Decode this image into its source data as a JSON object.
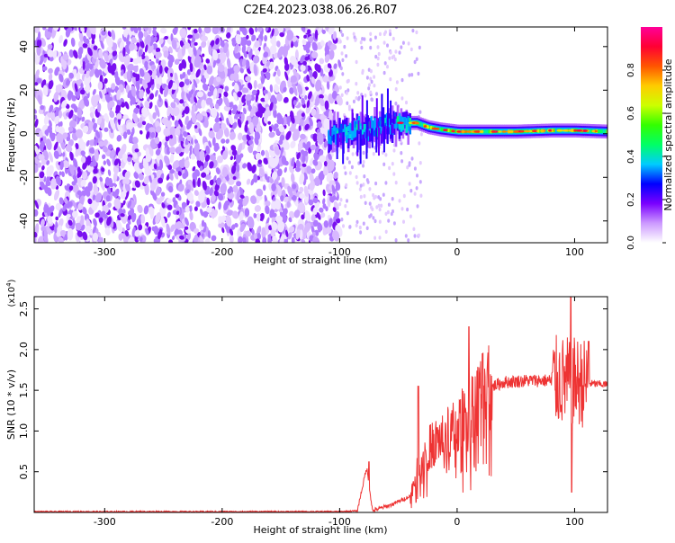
{
  "title": "C2E4.2023.038.06.26.R07",
  "chart_data": [
    {
      "type": "heatmap",
      "xlabel": "Height of straight line (km)",
      "ylabel": "Frequency (Hz)",
      "xlim": [
        -360,
        128
      ],
      "ylim": [
        -50,
        49
      ],
      "x_ticks": [
        -300,
        -200,
        -100,
        0,
        100
      ],
      "y_ticks": [
        -40,
        -20,
        0,
        20,
        40
      ],
      "noise_region_x": [
        -360,
        -100
      ],
      "transition_region_x": [
        -110,
        -40
      ],
      "signal_track": [
        {
          "x": -110,
          "y": -1
        },
        {
          "x": -95,
          "y": 1
        },
        {
          "x": -80,
          "y": 2
        },
        {
          "x": -65,
          "y": 3
        },
        {
          "x": -50,
          "y": 5
        },
        {
          "x": -35,
          "y": 5
        },
        {
          "x": -25,
          "y": 3
        },
        {
          "x": -15,
          "y": 2
        },
        {
          "x": 0,
          "y": 1
        },
        {
          "x": 20,
          "y": 1
        },
        {
          "x": 50,
          "y": 1
        },
        {
          "x": 80,
          "y": 1.5
        },
        {
          "x": 100,
          "y": 1.5
        },
        {
          "x": 128,
          "y": 1
        }
      ],
      "colorbar": {
        "label": "Normalized spectral amplitude",
        "range": [
          0.0,
          1.0
        ],
        "ticks": [
          0.0,
          0.2,
          0.4,
          0.6,
          0.8
        ],
        "stops": [
          "#ffffff",
          "#cc99ff",
          "#7a00ff",
          "#0000ff",
          "#00ccff",
          "#00ff66",
          "#33ff00",
          "#ccff00",
          "#ffcc00",
          "#ff5500",
          "#ff0033",
          "#ff0099"
        ]
      }
    },
    {
      "type": "line",
      "xlabel": "Height of straight line (km)",
      "ylabel": "SNR (10 * v/v)",
      "y_multiplier_label": "(x10",
      "y_multiplier_exp": "4",
      "xlim": [
        -360,
        128
      ],
      "ylim": [
        0,
        2.65
      ],
      "x_ticks": [
        -300,
        -200,
        -100,
        0,
        100
      ],
      "y_ticks": [
        0.5,
        1.0,
        1.5,
        2.0,
        2.5
      ],
      "y_tick_labels": [
        "0.5",
        "1.0",
        "1.5",
        "2.0",
        "2.5"
      ],
      "color": "#ee3333",
      "series_envelope": [
        {
          "x": -360,
          "y": 0.01
        },
        {
          "x": -100,
          "y": 0.01
        },
        {
          "x": -85,
          "y": 0.02
        },
        {
          "x": -77,
          "y": 0.55
        },
        {
          "x": -72,
          "y": 0.02
        },
        {
          "x": -55,
          "y": 0.1
        },
        {
          "x": -40,
          "y": 0.2
        },
        {
          "x": -30,
          "y": 0.7
        },
        {
          "x": -20,
          "y": 0.85
        },
        {
          "x": -10,
          "y": 0.95
        },
        {
          "x": 0,
          "y": 1.05
        },
        {
          "x": 10,
          "y": 1.25
        },
        {
          "x": 20,
          "y": 1.45
        },
        {
          "x": 30,
          "y": 1.55
        },
        {
          "x": 40,
          "y": 1.6
        },
        {
          "x": 60,
          "y": 1.62
        },
        {
          "x": 80,
          "y": 1.62
        },
        {
          "x": 100,
          "y": 1.6
        },
        {
          "x": 115,
          "y": 1.58
        },
        {
          "x": 128,
          "y": 1.57
        }
      ],
      "spikes": [
        {
          "x": -75,
          "y": 0.62
        },
        {
          "x": -33,
          "y": 1.55
        },
        {
          "x": 10,
          "y": 2.28
        },
        {
          "x": 97,
          "y": 2.65
        },
        {
          "x": 97.5,
          "y": 0.25
        },
        {
          "x": 112,
          "y": 2.1
        }
      ]
    }
  ]
}
